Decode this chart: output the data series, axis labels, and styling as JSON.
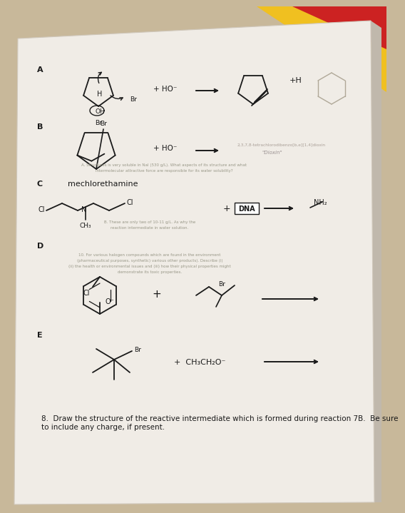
{
  "bg_color": "#c8b89a",
  "page_bg": "#f0ece6",
  "top_yellow": "#f0c020",
  "top_right_red": "#cc2222",
  "text_color": "#1a1a1a",
  "gray_text": "#888888",
  "section_labels": [
    "A",
    "B",
    "C",
    "D",
    "E"
  ],
  "mechlorethamine": "mechlorethamine",
  "reagent_A": "+ HO⁻",
  "reagent_B": "+ HO⁻",
  "plus_H": "+H",
  "dna_label": "DNA",
  "nh2_label": "NH₂",
  "br_label": "Br",
  "cl_label": "Cl",
  "o_minus": "O⁻",
  "ch3_label": "CH₃",
  "reagent_E": "+ CH₃CH₂O⁻",
  "question_8": "8.  Draw the structure of the reactive intermediate which is formed during reaction 7B.  Be sure\nto include any charge, if present.",
  "blurred_text_A": "A. Structures is very soluble in NaI (530 g/L). What aspects of its structure and what\nintermolecular attractive force are responsible for its water solubility?",
  "blurred_text_B": "B. These are only two of 10-11 g/L. As why the\nreaction intermediate in water solution.",
  "blurred_text_D": "10. For various halogen compounds which are found in the environment\n(pharmaceutical purposes, synthetic) various other products). Describe (i)\n(ii) the health or environmental issues and (iii) how their physical properties might\ndemonstrate its toxic properties."
}
